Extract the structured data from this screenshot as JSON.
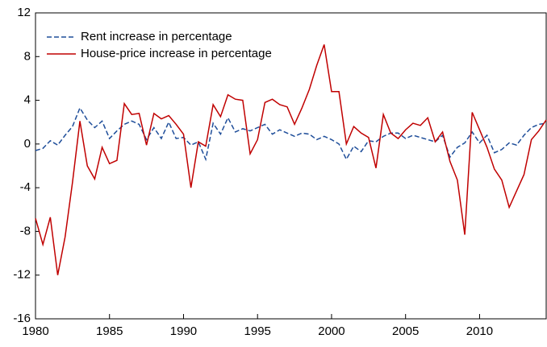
{
  "chart_data": {
    "type": "line",
    "x": [
      1980,
      1980.5,
      1981,
      1981.5,
      1982,
      1982.5,
      1983,
      1983.5,
      1984,
      1984.5,
      1985,
      1985.5,
      1986,
      1986.5,
      1987,
      1987.5,
      1988,
      1988.5,
      1989,
      1989.5,
      1990,
      1990.5,
      1991,
      1991.5,
      1992,
      1992.5,
      1993,
      1993.5,
      1994,
      1994.5,
      1995,
      1995.5,
      1996,
      1996.5,
      1997,
      1997.5,
      1998,
      1998.5,
      1999,
      1999.5,
      2000,
      2000.5,
      2001,
      2001.5,
      2002,
      2002.5,
      2003,
      2003.5,
      2004,
      2004.5,
      2005,
      2005.5,
      2006,
      2006.5,
      2007,
      2007.5,
      2008,
      2008.5,
      2009,
      2009.5,
      2010,
      2010.5,
      2011,
      2011.5,
      2012,
      2012.5,
      2013,
      2013.5,
      2014,
      2014.5
    ],
    "series": [
      {
        "name": "Rent increase in percentage",
        "color": "#1f4e9a",
        "dash": true,
        "values": [
          -0.6,
          -0.4,
          0.3,
          -0.1,
          0.8,
          1.6,
          3.3,
          2.2,
          1.5,
          2.1,
          0.5,
          1.2,
          1.8,
          2.1,
          1.8,
          0.4,
          1.5,
          0.5,
          2.0,
          0.5,
          0.6,
          -0.1,
          0.2,
          -1.4,
          1.9,
          0.9,
          2.4,
          1.1,
          1.4,
          1.2,
          1.5,
          1.8,
          0.9,
          1.3,
          1.0,
          0.7,
          1.0,
          0.9,
          0.4,
          0.7,
          0.4,
          0.0,
          -1.4,
          -0.2,
          -0.7,
          0.3,
          0.2,
          0.7,
          1.0,
          1.0,
          0.5,
          0.8,
          0.6,
          0.4,
          0.2,
          0.8,
          -1.2,
          -0.3,
          0.1,
          1.1,
          0.1,
          0.8,
          -0.8,
          -0.5,
          0.1,
          -0.1,
          0.8,
          1.5,
          1.8,
          1.9
        ]
      },
      {
        "name": "House-price increase in percentage",
        "color": "#c00000",
        "dash": false,
        "values": [
          -6.8,
          -9.2,
          -6.7,
          -12,
          -8.5,
          -3.5,
          2.1,
          -2.0,
          -3.2,
          -0.3,
          -1.8,
          -1.5,
          3.7,
          2.7,
          2.8,
          -0.1,
          2.8,
          2.3,
          2.6,
          1.8,
          0.9,
          -4.0,
          0.2,
          -0.2,
          3.6,
          2.5,
          4.5,
          4.1,
          4.0,
          -0.9,
          0.4,
          3.8,
          4.1,
          3.6,
          3.4,
          1.8,
          3.3,
          5.0,
          7.2,
          9.1,
          4.8,
          4.8,
          0.0,
          1.6,
          1.0,
          0.6,
          -2.2,
          2.7,
          1.0,
          0.5,
          1.3,
          1.9,
          1.7,
          2.4,
          0.2,
          1.1,
          -1.6,
          -3.3,
          -8.3,
          2.9,
          1.3,
          -0.3,
          -2.3,
          -3.3,
          -5.8,
          -4.3,
          -2.8,
          0.4,
          1.2,
          2.2
        ]
      }
    ],
    "xlim": [
      1980,
      2014.5
    ],
    "xticks": [
      1980,
      1985,
      1990,
      1995,
      2000,
      2005,
      2010
    ],
    "ylim": [
      -16,
      12
    ],
    "yticks": [
      -16,
      -12,
      -8,
      -4,
      0,
      4,
      8,
      12
    ],
    "legend": "top-left"
  }
}
